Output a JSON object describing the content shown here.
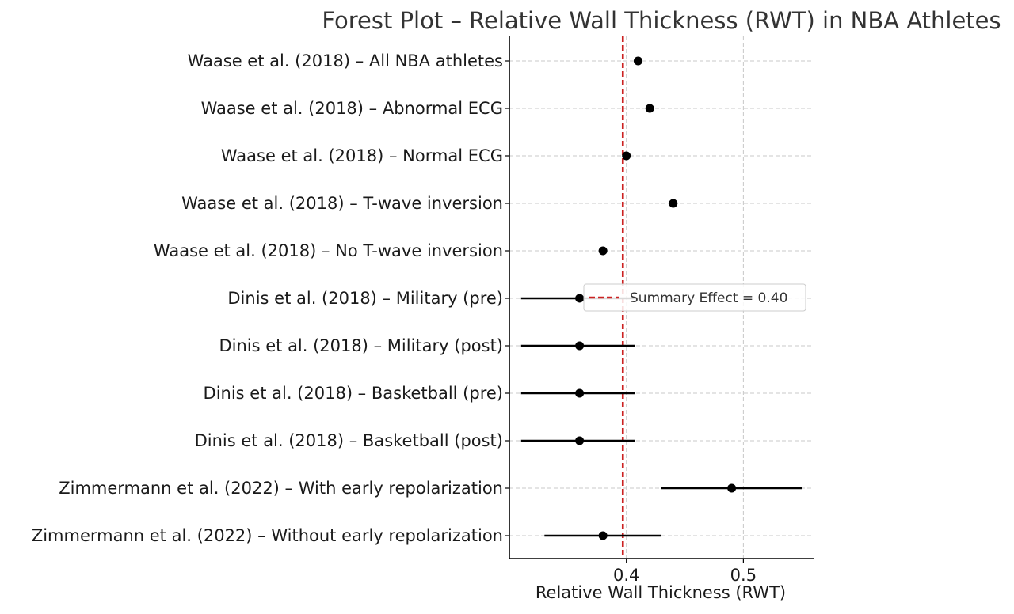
{
  "chart_data": {
    "type": "forest",
    "title": "Forest Plot – Relative Wall Thickness (RWT) in NBA Athletes",
    "xlabel": "Relative Wall Thickness (RWT)",
    "ylabel": "",
    "xlim": [
      0.3,
      0.56
    ],
    "xticks": [
      0.4,
      0.5
    ],
    "xtick_labels": [
      "0.4",
      "0.5"
    ],
    "grid": true,
    "legend": {
      "position": "center-right",
      "label": "Summary Effect = 0.40"
    },
    "summary_effect": 0.397,
    "summary_color": "#cc2222",
    "point_color": "#000000",
    "studies": [
      {
        "label": "Waase et al. (2018) – All NBA athletes",
        "value": 0.41,
        "ci": null
      },
      {
        "label": "Waase et al. (2018) – Abnormal ECG",
        "value": 0.42,
        "ci": null
      },
      {
        "label": "Waase et al. (2018) – Normal ECG",
        "value": 0.4,
        "ci": null
      },
      {
        "label": "Waase et al. (2018) – T-wave inversion",
        "value": 0.44,
        "ci": null
      },
      {
        "label": "Waase et al. (2018) – No T-wave inversion",
        "value": 0.38,
        "ci": null
      },
      {
        "label": "Dinis et al. (2018) – Military (pre)",
        "value": 0.36,
        "ci": [
          0.31,
          0.41
        ]
      },
      {
        "label": "Dinis et al. (2018) – Military (post)",
        "value": 0.36,
        "ci": [
          0.31,
          0.407
        ]
      },
      {
        "label": "Dinis et al. (2018) – Basketball (pre)",
        "value": 0.36,
        "ci": [
          0.31,
          0.407
        ]
      },
      {
        "label": "Dinis et al. (2018) – Basketball (post)",
        "value": 0.36,
        "ci": [
          0.31,
          0.407
        ]
      },
      {
        "label": "Zimmermann et al. (2022) – With early repolarization",
        "value": 0.49,
        "ci": [
          0.43,
          0.55
        ]
      },
      {
        "label": "Zimmermann et al. (2022) – Without early repolarization",
        "value": 0.38,
        "ci": [
          0.33,
          0.43
        ]
      }
    ]
  }
}
